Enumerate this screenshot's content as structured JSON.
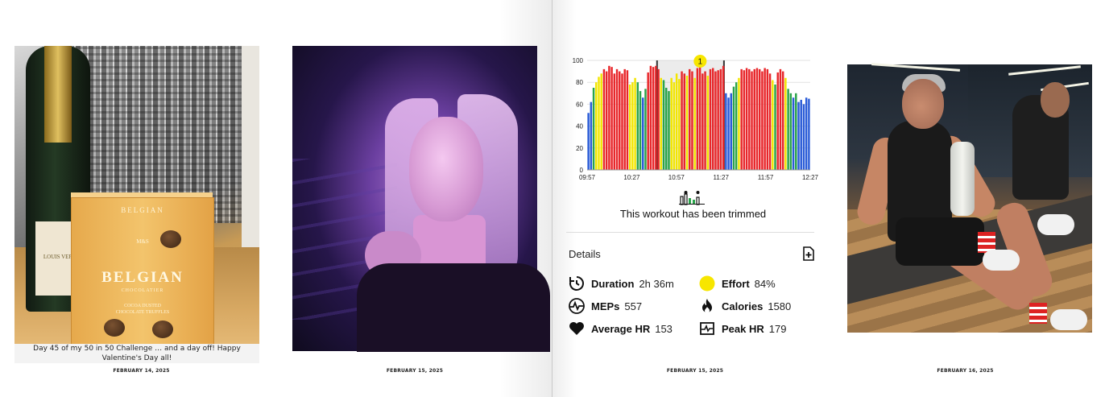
{
  "left_page": {
    "photo1": {
      "caption": "Day 45 of my 50 in 50 Challenge … and a day off! Happy Valentine's Day all!",
      "date": "FEBRUARY 14, 2025",
      "bottle_label": "LOUIS VER",
      "box": {
        "small": "BELGIAN",
        "brand_small": "M&S",
        "title": "BELGIAN",
        "subtitle": "CHOCOLATIER",
        "line1": "COCOA DUSTED",
        "line2": "CHOCOLATE TRUFFLES"
      }
    },
    "photo2": {
      "date": "FEBRUARY 15, 2025"
    }
  },
  "right_page": {
    "workout": {
      "date": "FEBRUARY 15, 2025",
      "trim_message": "This workout has been trimmed",
      "details_title": "Details",
      "marker_label": "1",
      "stats": [
        {
          "label": "Duration",
          "value": "2h 36m",
          "icon": "timer-icon"
        },
        {
          "label": "Effort",
          "value": "84%",
          "icon": "effort-dot-icon"
        },
        {
          "label": "MEPs",
          "value": "557",
          "icon": "meps-pulse-icon"
        },
        {
          "label": "Calories",
          "value": "1580",
          "icon": "flame-icon"
        },
        {
          "label": "Average HR",
          "value": "153",
          "icon": "heart-icon"
        },
        {
          "label": "Peak HR",
          "value": "179",
          "icon": "peak-hr-icon"
        }
      ],
      "colors": {
        "green": "#2aa34a",
        "blue": "#2a5bd7",
        "yellow": "#f3e600",
        "red": "#e8262a",
        "gray": "#c8c8c8"
      }
    },
    "photo4": {
      "date": "FEBRUARY 16, 2025"
    }
  },
  "chart_data": {
    "type": "bar",
    "title": "",
    "xlabel": "",
    "ylabel": "",
    "ylim": [
      0,
      100
    ],
    "yticks": [
      "0",
      "20",
      "40",
      "60",
      "80",
      "100"
    ],
    "xticks": [
      "09:57",
      "10:27",
      "10:57",
      "11:27",
      "11:57",
      "12:27"
    ],
    "trimmed_window": [
      "10:44",
      "11:29"
    ],
    "zones": [
      "blue",
      "green",
      "yellow",
      "red"
    ],
    "bars": [
      {
        "v": 52,
        "z": "blue"
      },
      {
        "v": 62,
        "z": "blue"
      },
      {
        "v": 75,
        "z": "green"
      },
      {
        "v": 80,
        "z": "yellow"
      },
      {
        "v": 85,
        "z": "yellow"
      },
      {
        "v": 88,
        "z": "yellow"
      },
      {
        "v": 92,
        "z": "red"
      },
      {
        "v": 90,
        "z": "red"
      },
      {
        "v": 95,
        "z": "red"
      },
      {
        "v": 94,
        "z": "red"
      },
      {
        "v": 88,
        "z": "red"
      },
      {
        "v": 92,
        "z": "red"
      },
      {
        "v": 90,
        "z": "red"
      },
      {
        "v": 88,
        "z": "red"
      },
      {
        "v": 92,
        "z": "red"
      },
      {
        "v": 91,
        "z": "red"
      },
      {
        "v": 78,
        "z": "yellow"
      },
      {
        "v": 80,
        "z": "yellow"
      },
      {
        "v": 84,
        "z": "yellow"
      },
      {
        "v": 80,
        "z": "green"
      },
      {
        "v": 72,
        "z": "green"
      },
      {
        "v": 66,
        "z": "blue"
      },
      {
        "v": 74,
        "z": "green"
      },
      {
        "v": 89,
        "z": "red"
      },
      {
        "v": 95,
        "z": "red"
      },
      {
        "v": 94,
        "z": "red"
      },
      {
        "v": 95,
        "z": "red"
      },
      {
        "v": 92,
        "z": "red"
      },
      {
        "v": 84,
        "z": "yellow"
      },
      {
        "v": 82,
        "z": "green"
      },
      {
        "v": 75,
        "z": "green"
      },
      {
        "v": 72,
        "z": "green"
      },
      {
        "v": 84,
        "z": "yellow"
      },
      {
        "v": 80,
        "z": "yellow"
      },
      {
        "v": 88,
        "z": "yellow"
      },
      {
        "v": 83,
        "z": "yellow"
      },
      {
        "v": 90,
        "z": "red"
      },
      {
        "v": 88,
        "z": "red"
      },
      {
        "v": 86,
        "z": "yellow"
      },
      {
        "v": 92,
        "z": "red"
      },
      {
        "v": 90,
        "z": "red"
      },
      {
        "v": 84,
        "z": "yellow"
      },
      {
        "v": 93,
        "z": "red"
      },
      {
        "v": 95,
        "z": "red"
      },
      {
        "v": 88,
        "z": "red"
      },
      {
        "v": 90,
        "z": "red"
      },
      {
        "v": 86,
        "z": "yellow"
      },
      {
        "v": 92,
        "z": "red"
      },
      {
        "v": 93,
        "z": "red"
      },
      {
        "v": 90,
        "z": "red"
      },
      {
        "v": 91,
        "z": "red"
      },
      {
        "v": 92,
        "z": "red"
      },
      {
        "v": 95,
        "z": "red"
      },
      {
        "v": 70,
        "z": "blue"
      },
      {
        "v": 66,
        "z": "blue"
      },
      {
        "v": 70,
        "z": "blue"
      },
      {
        "v": 76,
        "z": "green"
      },
      {
        "v": 80,
        "z": "green"
      },
      {
        "v": 84,
        "z": "yellow"
      },
      {
        "v": 92,
        "z": "red"
      },
      {
        "v": 91,
        "z": "red"
      },
      {
        "v": 93,
        "z": "red"
      },
      {
        "v": 92,
        "z": "red"
      },
      {
        "v": 90,
        "z": "red"
      },
      {
        "v": 92,
        "z": "red"
      },
      {
        "v": 93,
        "z": "red"
      },
      {
        "v": 92,
        "z": "red"
      },
      {
        "v": 90,
        "z": "red"
      },
      {
        "v": 93,
        "z": "red"
      },
      {
        "v": 92,
        "z": "red"
      },
      {
        "v": 88,
        "z": "red"
      },
      {
        "v": 82,
        "z": "yellow"
      },
      {
        "v": 78,
        "z": "green"
      },
      {
        "v": 89,
        "z": "red"
      },
      {
        "v": 92,
        "z": "red"
      },
      {
        "v": 90,
        "z": "red"
      },
      {
        "v": 84,
        "z": "yellow"
      },
      {
        "v": 74,
        "z": "green"
      },
      {
        "v": 70,
        "z": "green"
      },
      {
        "v": 66,
        "z": "blue"
      },
      {
        "v": 70,
        "z": "green"
      },
      {
        "v": 62,
        "z": "blue"
      },
      {
        "v": 64,
        "z": "blue"
      },
      {
        "v": 60,
        "z": "blue"
      },
      {
        "v": 66,
        "z": "blue"
      },
      {
        "v": 65,
        "z": "blue"
      }
    ]
  }
}
